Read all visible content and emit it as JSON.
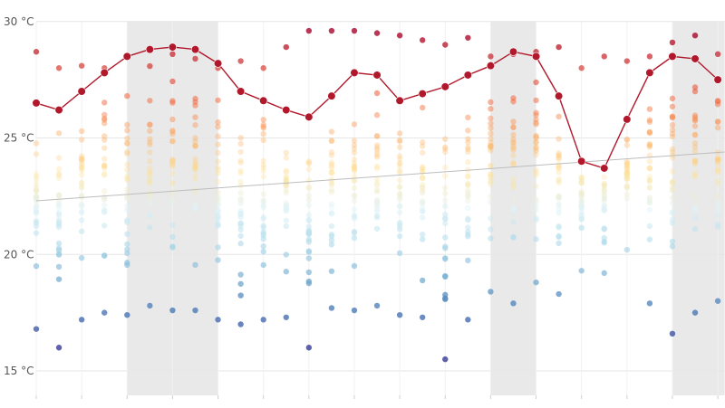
{
  "chart_data": {
    "type": "scatter",
    "title": "",
    "xlabel": "",
    "ylabel": "",
    "y_unit": "°C",
    "ylim": [
      14,
      30
    ],
    "xlim": [
      0,
      30.3
    ],
    "grid": true,
    "y_ticks": [
      {
        "value": 15,
        "label": "15 °C"
      },
      {
        "value": 20,
        "label": "20 °C"
      },
      {
        "value": 25,
        "label": "25 °C"
      },
      {
        "value": 30,
        "label": "30 °C"
      }
    ],
    "shaded_x_ranges": [
      [
        4,
        8
      ],
      [
        20,
        22
      ],
      [
        28,
        30.3
      ]
    ],
    "trend_line": {
      "x": [
        0,
        30.3
      ],
      "y": [
        22.3,
        24.4
      ]
    },
    "daily_max": {
      "name": "",
      "color": "#b2182b",
      "x": [
        0,
        1,
        2,
        3,
        4,
        5,
        6,
        7,
        8,
        9,
        10,
        11,
        12,
        13,
        14,
        15,
        16,
        17,
        18,
        19,
        20,
        21,
        22,
        23,
        24,
        25,
        26,
        27,
        28,
        29,
        30
      ],
      "y": [
        26.5,
        26.2,
        27.0,
        27.8,
        28.5,
        28.8,
        28.9,
        28.8,
        28.2,
        27.0,
        26.6,
        26.2,
        25.9,
        26.8,
        27.8,
        27.7,
        26.6,
        26.9,
        27.2,
        27.7,
        28.1,
        28.7,
        28.5,
        26.8,
        24.0,
        23.7,
        25.8,
        27.8,
        28.5,
        28.4,
        27.5
      ]
    },
    "point_ranges": {
      "x": [
        0,
        1,
        2,
        3,
        4,
        5,
        6,
        7,
        8,
        9,
        10,
        11,
        12,
        13,
        14,
        15,
        16,
        17,
        18,
        19,
        20,
        21,
        22,
        23,
        24,
        25,
        26,
        27,
        28,
        29,
        30
      ],
      "min": [
        16.8,
        16.0,
        17.2,
        17.5,
        17.4,
        17.8,
        17.6,
        17.6,
        17.2,
        17.0,
        17.2,
        17.3,
        16.0,
        17.7,
        17.6,
        17.8,
        17.4,
        17.3,
        15.5,
        17.2,
        18.4,
        17.9,
        18.8,
        18.3,
        19.3,
        19.2,
        20.2,
        17.9,
        16.6,
        17.5,
        18.0
      ],
      "max": [
        28.7,
        28.0,
        28.1,
        28.0,
        28.5,
        28.8,
        28.6,
        28.4,
        28.0,
        28.3,
        28.0,
        28.9,
        29.6,
        29.6,
        29.6,
        29.5,
        29.4,
        29.2,
        29.0,
        29.3,
        28.5,
        28.6,
        28.7,
        28.9,
        28.0,
        28.5,
        28.3,
        28.5,
        29.1,
        29.4,
        28.6
      ],
      "count": 30
    },
    "color_scale": [
      "#313695",
      "#4575b4",
      "#74add1",
      "#abd9e9",
      "#e0f3f8",
      "#fee090",
      "#fdae61",
      "#f46d43",
      "#d73027",
      "#a50026"
    ]
  }
}
